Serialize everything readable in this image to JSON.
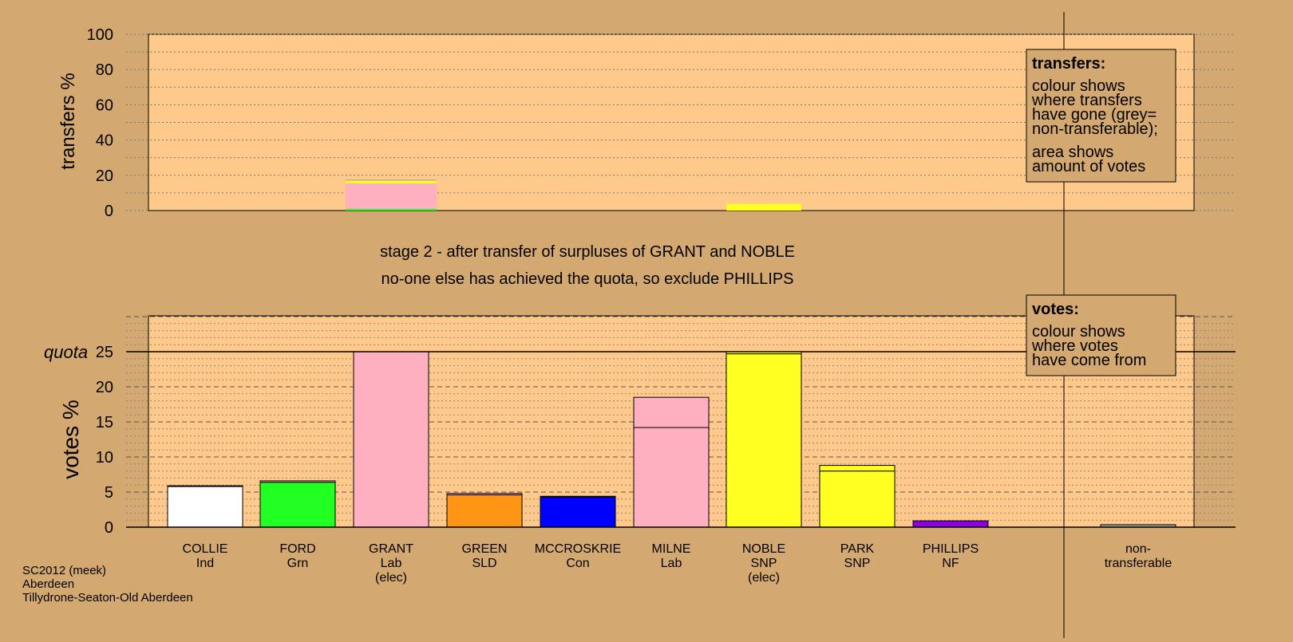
{
  "colors": {
    "page_bg": "#d4a871",
    "plot_bg": "#ffc98c",
    "nontransferable": "#a0a0a0"
  },
  "chart_data": [
    {
      "type": "bar",
      "name": "transfers",
      "ylabel": "transfers %",
      "ylim": [
        0,
        100
      ],
      "yticks": [
        "0",
        "20",
        "40",
        "60",
        "80",
        "100"
      ],
      "bars": [
        {
          "candidate": "GRANT",
          "segments": [
            {
              "to": "FORD",
              "color": "#22ff22",
              "value": 1
            },
            {
              "to": "MILNE",
              "color": "#ffb0c0",
              "value": 14.5
            },
            {
              "to": "PARK",
              "color": "#ffff22",
              "value": 1.5
            },
            {
              "to": "non-transferable",
              "color": "#a0a0a0",
              "value": 0.5
            }
          ]
        },
        {
          "candidate": "NOBLE",
          "segments": [
            {
              "to": "PARK",
              "color": "#ffff22",
              "value": 3.8
            }
          ]
        }
      ],
      "legend": {
        "title": "transfers:",
        "lines": [
          "colour shows",
          "where transfers",
          "have gone (grey=",
          "non-transferable);"
        ],
        "lines2": [
          "area shows",
          "amount of votes"
        ]
      }
    },
    {
      "type": "bar",
      "name": "votes",
      "ylabel": "votes %",
      "ylim": [
        0,
        30
      ],
      "yticks": [
        "0",
        "5",
        "10",
        "15",
        "20",
        "25"
      ],
      "quota": 25,
      "quota_label": "quota",
      "bars": [
        {
          "name": "COLLIE",
          "party": "Ind",
          "elected": "",
          "segments": [
            {
              "color": "#ffffff",
              "value": 5.8
            },
            {
              "color": "#ffb0c0",
              "value": 0.1
            }
          ]
        },
        {
          "name": "FORD",
          "party": "Grn",
          "elected": "",
          "segments": [
            {
              "color": "#22ff22",
              "value": 6.4
            },
            {
              "color": "#ffb0c0",
              "value": 0.2
            }
          ]
        },
        {
          "name": "GRANT",
          "party": "Lab",
          "elected": "(elec)",
          "segments": [
            {
              "color": "#ffb0c0",
              "value": 25
            }
          ]
        },
        {
          "name": "GREEN",
          "party": "SLD",
          "elected": "",
          "segments": [
            {
              "color": "#ff9514",
              "value": 4.6
            },
            {
              "color": "#ffb0c0",
              "value": 0.2
            }
          ]
        },
        {
          "name": "MCCROSKRIE",
          "party": "Con",
          "elected": "",
          "segments": [
            {
              "color": "#0000ff",
              "value": 4.3
            },
            {
              "color": "#ffb0c0",
              "value": 0.1
            }
          ]
        },
        {
          "name": "MILNE",
          "party": "Lab",
          "elected": "",
          "segments": [
            {
              "color": "#ffb0c0",
              "value": 14.2
            },
            {
              "color": "#ffb0c0",
              "value": 4.3
            }
          ]
        },
        {
          "name": "NOBLE",
          "party": "SNP",
          "elected": "(elec)",
          "segments": [
            {
              "color": "#ffff22",
              "value": 24.7
            },
            {
              "color": "#ffff22",
              "value": 0.3
            }
          ]
        },
        {
          "name": "PARK",
          "party": "SNP",
          "elected": "",
          "segments": [
            {
              "color": "#ffff22",
              "value": 8
            },
            {
              "color": "#ffff22",
              "value": 0.8
            }
          ]
        },
        {
          "name": "PHILLIPS",
          "party": "NF",
          "elected": "",
          "segments": [
            {
              "color": "#8a00e0",
              "value": 0.9
            }
          ]
        }
      ],
      "nontransferable": {
        "label1": "non-",
        "label2": "transferable",
        "value": 0.35
      },
      "legend": {
        "title": "votes:",
        "lines": [
          "colour shows",
          "where votes",
          "have come from"
        ]
      }
    }
  ],
  "stage_text": {
    "line1": "stage 2 - after transfer of surpluses of GRANT and NOBLE",
    "line2": "no-one else has achieved the quota, so exclude PHILLIPS"
  },
  "footer": {
    "line1": "SC2012 (meek)",
    "line2": "Aberdeen",
    "line3": "Tillydrone-Seaton-Old Aberdeen"
  }
}
